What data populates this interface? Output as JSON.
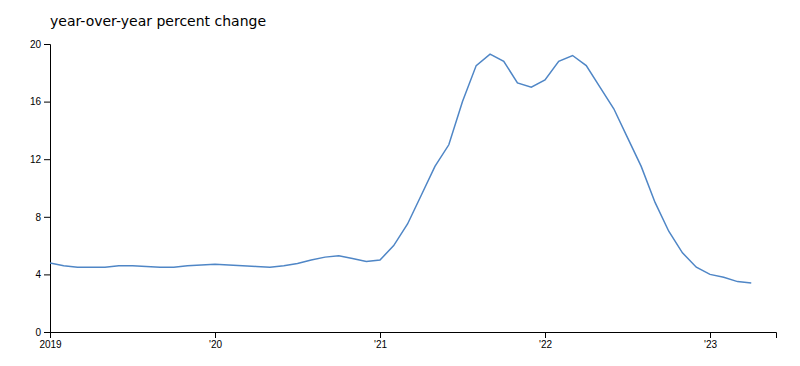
{
  "chart_data": {
    "type": "line",
    "title": "year-over-year percent change",
    "x": [
      2019.0,
      2019.083,
      2019.167,
      2019.25,
      2019.333,
      2019.417,
      2019.5,
      2019.583,
      2019.667,
      2019.75,
      2019.833,
      2019.917,
      2020.0,
      2020.083,
      2020.167,
      2020.25,
      2020.333,
      2020.417,
      2020.5,
      2020.583,
      2020.667,
      2020.75,
      2020.833,
      2020.917,
      2021.0,
      2021.083,
      2021.167,
      2021.25,
      2021.333,
      2021.417,
      2021.5,
      2021.583,
      2021.667,
      2021.75,
      2021.833,
      2021.917,
      2022.0,
      2022.083,
      2022.167,
      2022.25,
      2022.333,
      2022.417,
      2022.5,
      2022.583,
      2022.667,
      2022.75,
      2022.833,
      2022.917,
      2023.0,
      2023.083,
      2023.167,
      2023.25
    ],
    "values": [
      4.8,
      4.6,
      4.5,
      4.5,
      4.5,
      4.6,
      4.6,
      4.55,
      4.5,
      4.5,
      4.6,
      4.65,
      4.7,
      4.65,
      4.6,
      4.55,
      4.5,
      4.6,
      4.75,
      5.0,
      5.2,
      5.3,
      5.1,
      4.9,
      5.0,
      6.0,
      7.5,
      9.5,
      11.5,
      13.0,
      16.0,
      18.5,
      19.3,
      18.8,
      17.3,
      17.0,
      17.5,
      18.8,
      19.2,
      18.5,
      17.0,
      15.5,
      13.5,
      11.5,
      9.0,
      7.0,
      5.5,
      4.5,
      4.0,
      3.8,
      3.5,
      3.4
    ],
    "color": "#4f86c6",
    "xlim": [
      2019.0,
      2023.4
    ],
    "xticks": [
      2019,
      {
        "value": 2020,
        "label": "'20"
      },
      {
        "value": 2021,
        "label": "'21"
      },
      {
        "value": 2022,
        "label": "'22"
      },
      {
        "value": 2023,
        "label": "'23"
      }
    ],
    "ylim": [
      0,
      20
    ],
    "yticks": [
      0,
      4,
      8,
      12,
      16,
      20
    ],
    "grid": false
  }
}
